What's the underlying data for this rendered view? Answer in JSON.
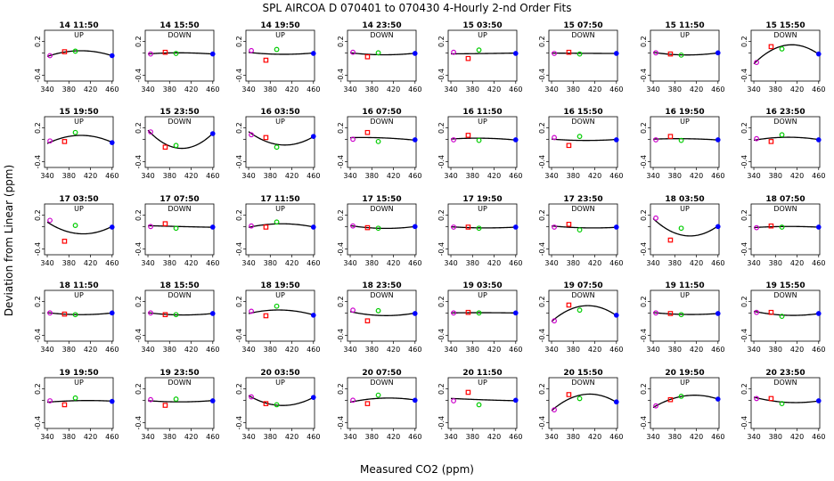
{
  "title": "SPL    AIRCOA D    070401 to 070430    4-Hourly 2-nd Order Fits",
  "xlabel": "Measured CO2 (ppm)",
  "ylabel": "Deviation from Linear (ppm)",
  "colors": {
    "point1": "#cc00cc",
    "point2": "#ff0000",
    "point3": "#00cc00",
    "point4": "#0000ff",
    "curve": "#000000"
  },
  "chart_data": {
    "type": "scatter",
    "layout": "small-multiples 5 rows x 8 columns",
    "xlim": [
      335,
      462
    ],
    "ylim": [
      -0.5,
      0.4
    ],
    "xticks": [
      340,
      380,
      420,
      460
    ],
    "yticks": [
      -0.4,
      0.0,
      0.2
    ],
    "ytick_labels": [
      "-0.4",
      "",
      "0.2"
    ],
    "standard_x": [
      345,
      372,
      392,
      460
    ],
    "panels": [
      {
        "title": "14 11:50",
        "label": "UP",
        "y": [
          -0.05,
          0.02,
          0.03,
          -0.05
        ]
      },
      {
        "title": "14 15:50",
        "label": "DOWN",
        "y": [
          -0.02,
          0.01,
          -0.01,
          -0.02
        ]
      },
      {
        "title": "14 19:50",
        "label": "UP",
        "y": [
          0.04,
          -0.13,
          0.06,
          -0.01
        ]
      },
      {
        "title": "14 23:50",
        "label": "DOWN",
        "y": [
          0.01,
          -0.07,
          0.0,
          -0.01
        ]
      },
      {
        "title": "15 03:50",
        "label": "UP",
        "y": [
          0.01,
          -0.1,
          0.05,
          -0.01
        ]
      },
      {
        "title": "15 07:50",
        "label": "DOWN",
        "y": [
          -0.01,
          0.01,
          -0.02,
          -0.01
        ]
      },
      {
        "title": "15 11:50",
        "label": "UP",
        "y": [
          0.0,
          -0.02,
          -0.04,
          0.0
        ]
      },
      {
        "title": "15 15:50",
        "label": "DOWN",
        "y": [
          -0.17,
          0.11,
          0.07,
          -0.02
        ]
      },
      {
        "title": "15 19:50",
        "label": "UP",
        "y": [
          -0.03,
          -0.04,
          0.12,
          -0.06
        ]
      },
      {
        "title": "15 23:50",
        "label": "DOWN",
        "y": [
          0.13,
          -0.14,
          -0.11,
          0.1
        ]
      },
      {
        "title": "16 03:50",
        "label": "UP",
        "y": [
          0.08,
          0.03,
          -0.14,
          0.05
        ]
      },
      {
        "title": "16 07:50",
        "label": "DOWN",
        "y": [
          0.0,
          0.12,
          -0.04,
          -0.01
        ]
      },
      {
        "title": "16 11:50",
        "label": "UP",
        "y": [
          -0.01,
          0.07,
          -0.02,
          -0.01
        ]
      },
      {
        "title": "16 15:50",
        "label": "DOWN",
        "y": [
          0.03,
          -0.11,
          0.05,
          -0.01
        ]
      },
      {
        "title": "16 19:50",
        "label": "UP",
        "y": [
          -0.01,
          0.05,
          -0.02,
          -0.01
        ]
      },
      {
        "title": "16 23:50",
        "label": "DOWN",
        "y": [
          0.01,
          -0.04,
          0.08,
          -0.01
        ]
      },
      {
        "title": "17 03:50",
        "label": "UP",
        "y": [
          0.11,
          -0.26,
          0.02,
          -0.01
        ]
      },
      {
        "title": "17 07:50",
        "label": "DOWN",
        "y": [
          0.0,
          0.05,
          -0.03,
          -0.01
        ]
      },
      {
        "title": "17 11:50",
        "label": "UP",
        "y": [
          0.01,
          -0.01,
          0.08,
          -0.01
        ]
      },
      {
        "title": "17 15:50",
        "label": "DOWN",
        "y": [
          0.01,
          -0.02,
          -0.03,
          0.0
        ]
      },
      {
        "title": "17 19:50",
        "label": "UP",
        "y": [
          -0.01,
          -0.01,
          -0.03,
          -0.01
        ]
      },
      {
        "title": "17 23:50",
        "label": "DOWN",
        "y": [
          -0.01,
          0.04,
          -0.06,
          -0.01
        ]
      },
      {
        "title": "18 03:50",
        "label": "UP",
        "y": [
          0.15,
          -0.24,
          -0.03,
          0.0
        ]
      },
      {
        "title": "18 07:50",
        "label": "DOWN",
        "y": [
          -0.02,
          0.01,
          -0.01,
          -0.01
        ]
      },
      {
        "title": "18 11:50",
        "label": "UP",
        "y": [
          0.0,
          -0.02,
          -0.03,
          0.0
        ]
      },
      {
        "title": "18 15:50",
        "label": "DOWN",
        "y": [
          0.0,
          -0.03,
          -0.03,
          -0.01
        ]
      },
      {
        "title": "18 19:50",
        "label": "UP",
        "y": [
          0.03,
          -0.05,
          0.12,
          -0.04
        ]
      },
      {
        "title": "18 23:50",
        "label": "DOWN",
        "y": [
          0.05,
          -0.14,
          0.04,
          -0.01
        ]
      },
      {
        "title": "19 03:50",
        "label": "UP",
        "y": [
          0.0,
          0.01,
          0.0,
          0.0
        ]
      },
      {
        "title": "19 07:50",
        "label": "DOWN",
        "y": [
          -0.14,
          0.14,
          0.05,
          -0.04
        ]
      },
      {
        "title": "19 11:50",
        "label": "UP",
        "y": [
          0.0,
          -0.01,
          -0.03,
          -0.01
        ]
      },
      {
        "title": "19 15:50",
        "label": "DOWN",
        "y": [
          0.01,
          0.01,
          -0.06,
          -0.01
        ]
      },
      {
        "title": "19 19:50",
        "label": "UP",
        "y": [
          -0.01,
          -0.08,
          0.04,
          -0.02
        ]
      },
      {
        "title": "19 23:50",
        "label": "DOWN",
        "y": [
          0.01,
          -0.09,
          0.02,
          -0.01
        ]
      },
      {
        "title": "20 03:50",
        "label": "UP",
        "y": [
          0.06,
          -0.06,
          -0.08,
          0.05
        ]
      },
      {
        "title": "20 07:50",
        "label": "DOWN",
        "y": [
          0.0,
          -0.06,
          0.09,
          0.0
        ]
      },
      {
        "title": "20 11:50",
        "label": "UP",
        "y": [
          -0.01,
          0.14,
          -0.08,
          0.0
        ]
      },
      {
        "title": "20 15:50",
        "label": "DOWN",
        "y": [
          -0.17,
          0.1,
          0.03,
          -0.03
        ]
      },
      {
        "title": "20 19:50",
        "label": "UP",
        "y": [
          -0.1,
          0.01,
          0.07,
          0.02
        ]
      },
      {
        "title": "20 23:50",
        "label": "DOWN",
        "y": [
          0.03,
          0.03,
          -0.06,
          -0.01
        ]
      }
    ]
  }
}
